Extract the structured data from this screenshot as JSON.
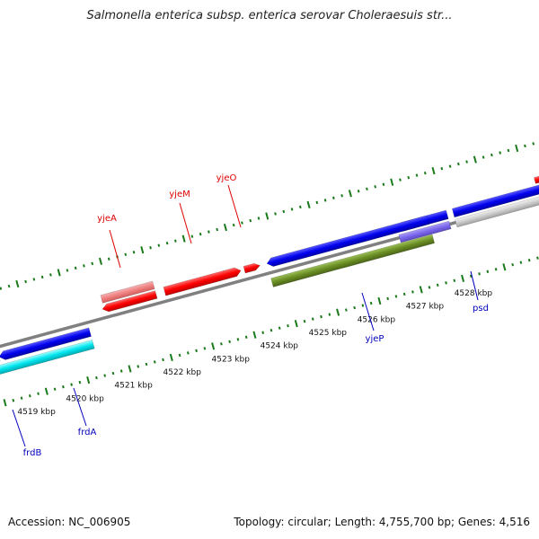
{
  "title": "Salmonella enterica subsp. enterica serovar Choleraesuis str...",
  "footer": {
    "accession": "Accession: NC_006905",
    "topology": "Topology: circular; Length: 4,755,700 bp; Genes: 4,516"
  },
  "map": {
    "tick_labels": [
      "4519 kbp",
      "4520 kbp",
      "4521 kbp",
      "4522 kbp",
      "4523 kbp",
      "4524 kbp",
      "4525 kbp",
      "4526 kbp",
      "4527 kbp",
      "4528 kbp"
    ],
    "genes_top": [
      "yjeA",
      "yjeM",
      "yjeO"
    ],
    "genes_bottom": [
      "frdB",
      "frdA",
      "yjeP",
      "psd"
    ],
    "colors": {
      "forward": "#ff0000",
      "forward_light": "#f08080",
      "reverse": "#0000ee",
      "cyan": "#00e5ee",
      "olive": "#6b8e23",
      "slate": "#7b68ee",
      "grey": "#c8c8c8",
      "backbone": "#808080",
      "tick": "#1a7a1a",
      "label_top": "#dd0000",
      "label_bottom": "#0000bb"
    }
  }
}
